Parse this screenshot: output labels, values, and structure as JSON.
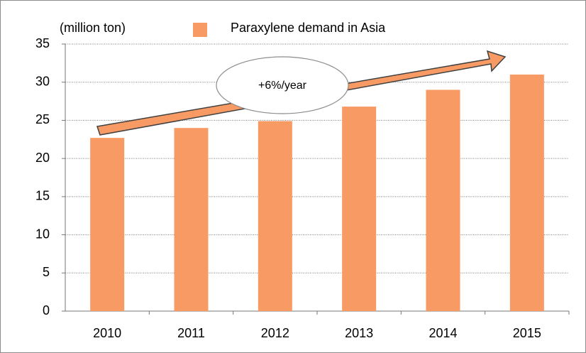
{
  "chart_data": {
    "type": "bar",
    "y_label": "(million ton)",
    "annotation": "+6%/year",
    "categories": [
      "2010",
      "2011",
      "2012",
      "2013",
      "2014",
      "2015"
    ],
    "series": [
      {
        "name": "Paraxylene demand in Asia",
        "color": "#f79a64",
        "values": [
          22.7,
          24.0,
          24.9,
          26.8,
          29.0,
          31.0
        ]
      }
    ],
    "ylim": [
      0,
      35
    ],
    "yticks": [
      0,
      5,
      10,
      15,
      20,
      25,
      30,
      35
    ],
    "grid": true
  }
}
